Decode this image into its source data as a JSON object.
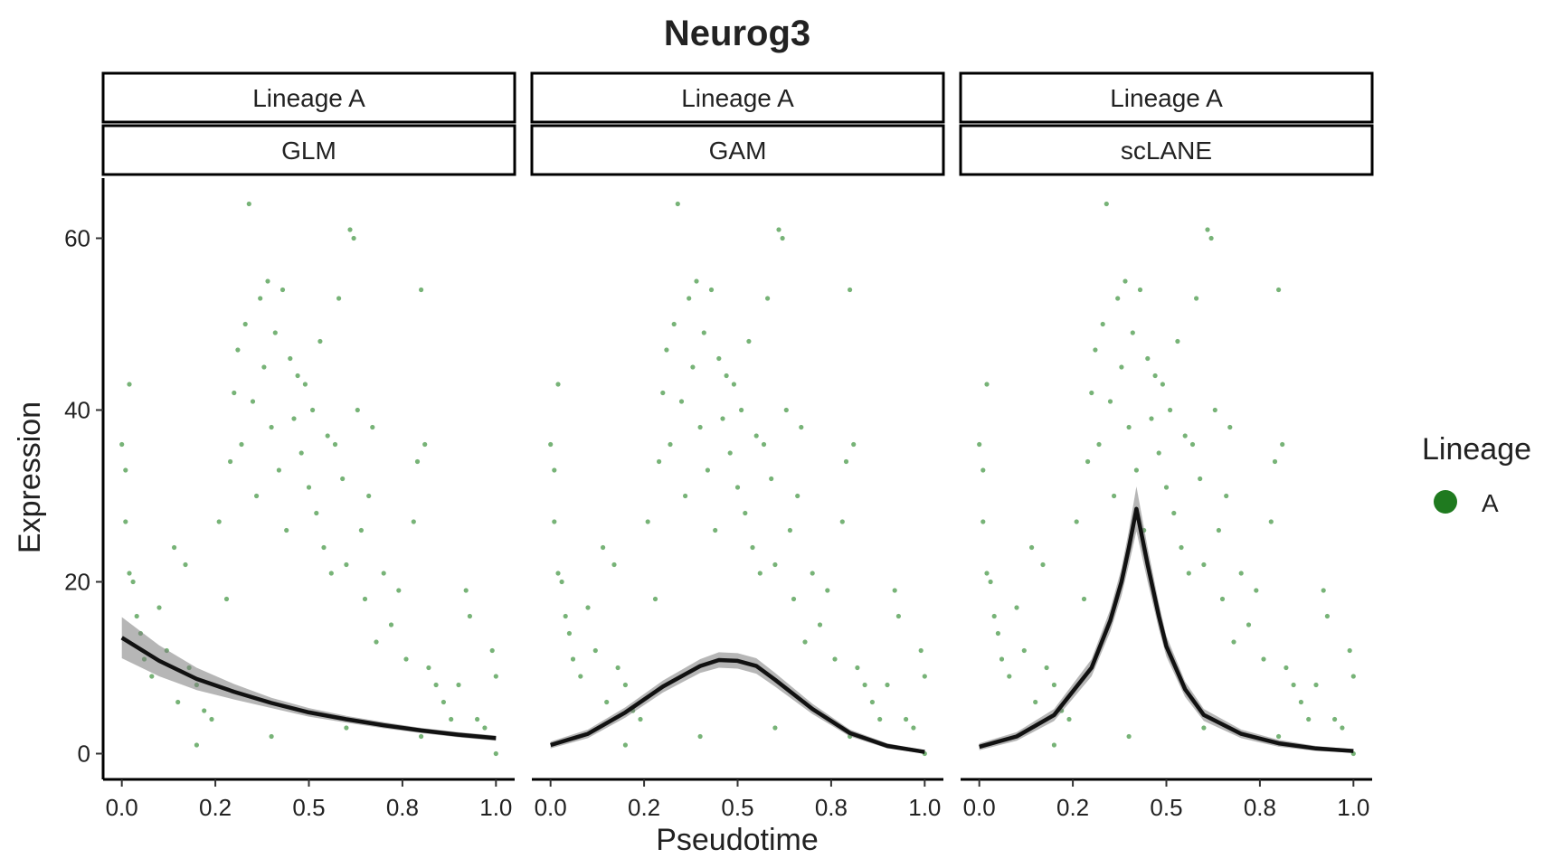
{
  "chart_data": {
    "type": "scatter",
    "title": "Neurog3",
    "xlabel": "Pseudotime",
    "ylabel": "Expression",
    "xlim": [
      -0.05,
      1.05
    ],
    "ylim": [
      -3,
      67
    ],
    "x_ticks": [
      {
        "value": 0.0,
        "label": "0.0"
      },
      {
        "value": 0.25,
        "label": "0.2"
      },
      {
        "value": 0.5,
        "label": "0.5"
      },
      {
        "value": 0.75,
        "label": "0.8"
      },
      {
        "value": 1.0,
        "label": "1.0"
      }
    ],
    "y_ticks": [
      {
        "value": 0,
        "label": "0"
      },
      {
        "value": 20,
        "label": "20"
      },
      {
        "value": 40,
        "label": "40"
      },
      {
        "value": 60,
        "label": "60"
      }
    ],
    "grid": false,
    "legend": {
      "title": "Lineage",
      "placement": "right",
      "items": [
        {
          "label": "A",
          "color": "#1f7a1f"
        }
      ]
    },
    "point_color": "#2e8b2e",
    "fit_color": "#111111",
    "ribbon_color": "#7a7a7a",
    "points": [
      [
        0.0,
        36
      ],
      [
        0.01,
        33
      ],
      [
        0.01,
        27
      ],
      [
        0.02,
        43
      ],
      [
        0.02,
        21
      ],
      [
        0.03,
        20
      ],
      [
        0.04,
        16
      ],
      [
        0.05,
        14
      ],
      [
        0.06,
        11
      ],
      [
        0.08,
        9
      ],
      [
        0.1,
        17
      ],
      [
        0.12,
        12
      ],
      [
        0.14,
        24
      ],
      [
        0.15,
        6
      ],
      [
        0.17,
        22
      ],
      [
        0.18,
        10
      ],
      [
        0.2,
        8
      ],
      [
        0.22,
        5
      ],
      [
        0.24,
        4
      ],
      [
        0.26,
        27
      ],
      [
        0.28,
        18
      ],
      [
        0.29,
        34
      ],
      [
        0.3,
        42
      ],
      [
        0.31,
        47
      ],
      [
        0.32,
        36
      ],
      [
        0.33,
        50
      ],
      [
        0.34,
        64
      ],
      [
        0.35,
        41
      ],
      [
        0.36,
        30
      ],
      [
        0.37,
        53
      ],
      [
        0.38,
        45
      ],
      [
        0.39,
        55
      ],
      [
        0.4,
        38
      ],
      [
        0.41,
        49
      ],
      [
        0.42,
        33
      ],
      [
        0.43,
        54
      ],
      [
        0.44,
        26
      ],
      [
        0.45,
        46
      ],
      [
        0.46,
        39
      ],
      [
        0.47,
        44
      ],
      [
        0.48,
        35
      ],
      [
        0.49,
        43
      ],
      [
        0.5,
        31
      ],
      [
        0.51,
        40
      ],
      [
        0.52,
        28
      ],
      [
        0.53,
        48
      ],
      [
        0.54,
        24
      ],
      [
        0.55,
        37
      ],
      [
        0.56,
        21
      ],
      [
        0.57,
        36
      ],
      [
        0.58,
        53
      ],
      [
        0.59,
        32
      ],
      [
        0.6,
        22
      ],
      [
        0.61,
        61
      ],
      [
        0.62,
        60
      ],
      [
        0.63,
        40
      ],
      [
        0.64,
        26
      ],
      [
        0.65,
        18
      ],
      [
        0.66,
        30
      ],
      [
        0.67,
        38
      ],
      [
        0.68,
        13
      ],
      [
        0.7,
        21
      ],
      [
        0.72,
        15
      ],
      [
        0.74,
        19
      ],
      [
        0.76,
        11
      ],
      [
        0.78,
        27
      ],
      [
        0.79,
        34
      ],
      [
        0.8,
        54
      ],
      [
        0.81,
        36
      ],
      [
        0.82,
        10
      ],
      [
        0.84,
        8
      ],
      [
        0.86,
        6
      ],
      [
        0.88,
        4
      ],
      [
        0.9,
        8
      ],
      [
        0.92,
        19
      ],
      [
        0.93,
        16
      ],
      [
        0.95,
        4
      ],
      [
        0.97,
        3
      ],
      [
        0.99,
        12
      ],
      [
        1.0,
        9
      ],
      [
        0.2,
        1
      ],
      [
        0.4,
        2
      ],
      [
        0.6,
        3
      ],
      [
        0.8,
        2
      ],
      [
        1.0,
        0
      ]
    ],
    "panels": [
      {
        "strip_top": "Lineage A",
        "strip_bottom": "GLM",
        "fit": {
          "x": [
            0.0,
            0.1,
            0.2,
            0.3,
            0.4,
            0.5,
            0.6,
            0.7,
            0.8,
            0.9,
            1.0
          ],
          "y": [
            13.5,
            10.8,
            8.7,
            7.2,
            5.9,
            4.8,
            4.0,
            3.3,
            2.7,
            2.2,
            1.8
          ]
        },
        "ribbon_halfwidth": [
          2.4,
          1.8,
          1.3,
          0.9,
          0.6,
          0.5,
          0.4,
          0.35,
          0.3,
          0.3,
          0.3
        ]
      },
      {
        "strip_top": "Lineage A",
        "strip_bottom": "GAM",
        "fit": {
          "x": [
            0.0,
            0.1,
            0.2,
            0.3,
            0.4,
            0.45,
            0.5,
            0.55,
            0.6,
            0.7,
            0.8,
            0.9,
            1.0
          ],
          "y": [
            1.0,
            2.3,
            4.8,
            7.8,
            10.2,
            10.9,
            10.8,
            10.2,
            8.6,
            5.2,
            2.4,
            0.9,
            0.2
          ]
        },
        "ribbon_halfwidth": [
          0.4,
          0.5,
          0.6,
          0.7,
          0.8,
          0.9,
          0.9,
          0.9,
          0.8,
          0.6,
          0.4,
          0.3,
          0.2
        ]
      },
      {
        "strip_top": "Lineage A",
        "strip_bottom": "scLANE",
        "fit": {
          "x": [
            0.0,
            0.1,
            0.2,
            0.3,
            0.35,
            0.38,
            0.4,
            0.42,
            0.45,
            0.48,
            0.5,
            0.55,
            0.6,
            0.7,
            0.8,
            0.9,
            1.0
          ],
          "y": [
            0.8,
            2.0,
            4.5,
            10.0,
            15.5,
            20.0,
            24.0,
            28.5,
            22.0,
            16.0,
            12.5,
            7.5,
            4.5,
            2.3,
            1.2,
            0.6,
            0.3
          ]
        },
        "ribbon_halfwidth": [
          0.4,
          0.5,
          0.7,
          1.0,
          1.3,
          1.6,
          2.0,
          2.6,
          2.0,
          1.5,
          1.2,
          0.9,
          0.7,
          0.5,
          0.4,
          0.3,
          0.2
        ]
      }
    ]
  }
}
